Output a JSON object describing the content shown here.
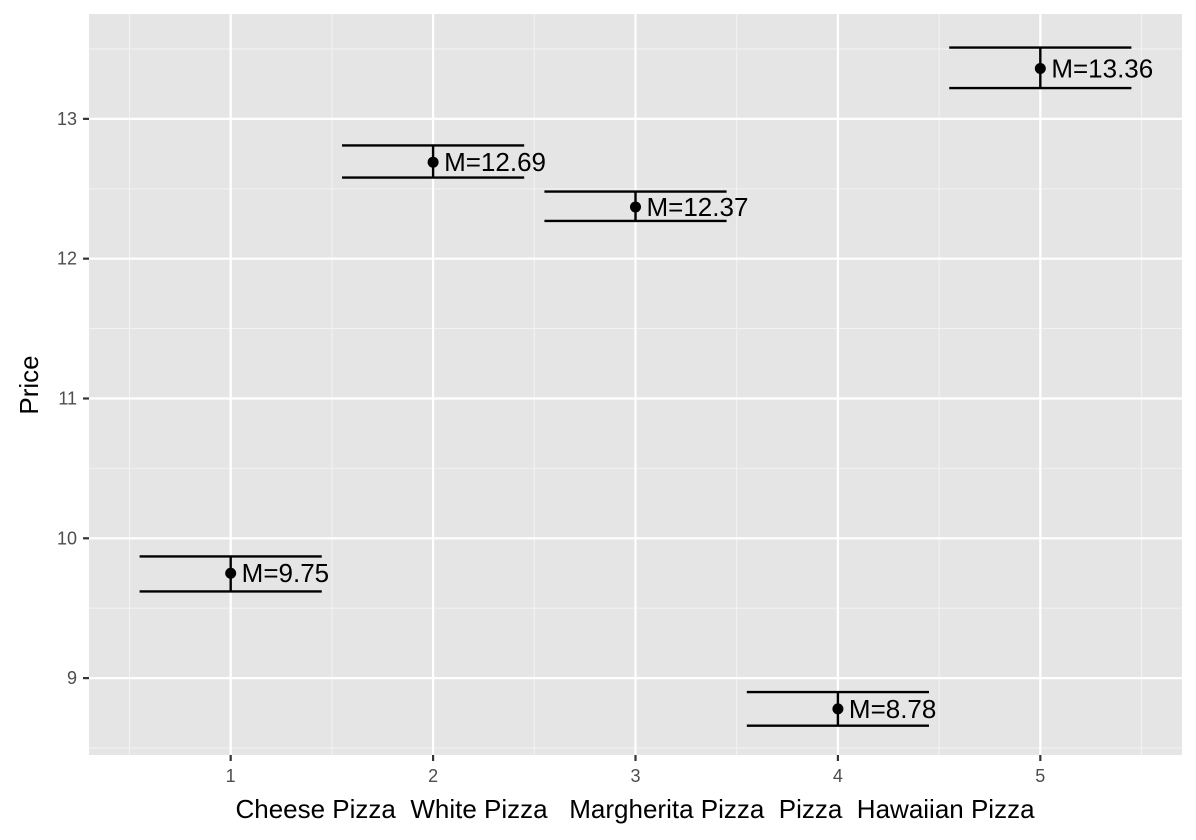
{
  "chart_data": {
    "type": "errorbar",
    "title": "",
    "xlabel": "Cheese Pizza  White Pizza   Margherita Pizza  Pizza  Hawaiian Pizza",
    "ylabel": "Price",
    "x_ticks": [
      "1",
      "2",
      "3",
      "4",
      "5"
    ],
    "y_ticks": [
      "9",
      "10",
      "11",
      "12",
      "13"
    ],
    "xlim": [
      0.3,
      5.7
    ],
    "ylim": [
      8.45,
      13.75
    ],
    "grid": true,
    "legend": "none",
    "points": [
      {
        "x": 1,
        "mean": 9.75,
        "upper": 9.87,
        "lower": 9.62,
        "label": "M=9.75"
      },
      {
        "x": 2,
        "mean": 12.69,
        "upper": 12.81,
        "lower": 12.58,
        "label": "M=12.69"
      },
      {
        "x": 3,
        "mean": 12.37,
        "upper": 12.48,
        "lower": 12.27,
        "label": "M=12.37"
      },
      {
        "x": 4,
        "mean": 8.78,
        "upper": 8.9,
        "lower": 8.66,
        "label": "M=8.78"
      },
      {
        "x": 5,
        "mean": 13.36,
        "upper": 13.51,
        "lower": 13.22,
        "label": "M=13.36"
      }
    ],
    "colors": {
      "panel": "#e5e5e5",
      "grid": "#ffffff",
      "marks": "#000000",
      "tick_text": "#4d4d4d"
    }
  }
}
